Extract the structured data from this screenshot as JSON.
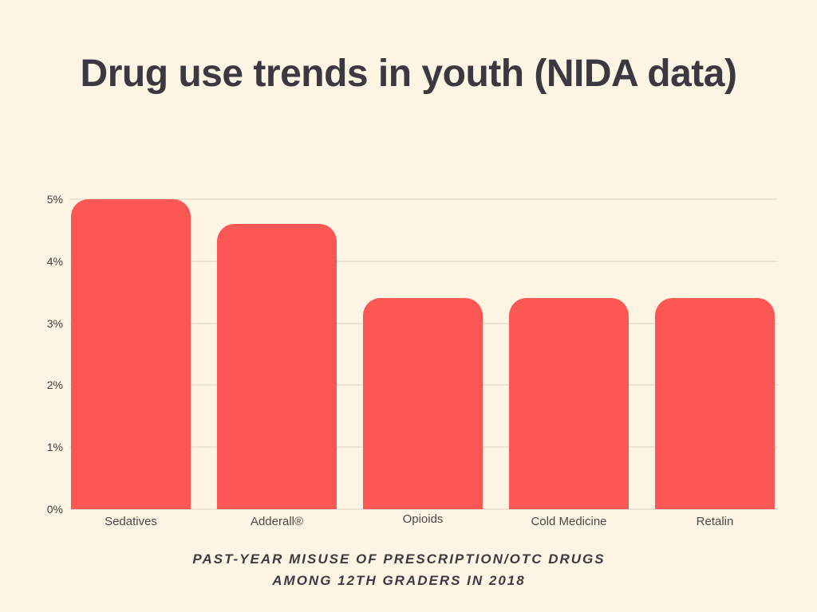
{
  "page": {
    "background_color": "#FDF4E4",
    "title": "Drug use trends in youth (NIDA data)",
    "caption_line1": "PAST-YEAR MISUSE OF PRESCRIPTION/OTC DRUGS",
    "caption_line2": "AMONG 12TH GRADERS IN 2018"
  },
  "colors": {
    "bar": "#FB5754",
    "title_text": "#3A3941",
    "tick_text": "#3E3E3E",
    "category_text": "#4A4A4A",
    "caption_text": "#3C3B42",
    "gridline": "#EBE4D4"
  },
  "chart_data": {
    "type": "bar",
    "title": "Drug use trends in youth (NIDA data)",
    "subtitle": "PAST-YEAR MISUSE OF PRESCRIPTION/OTC DRUGS AMONG 12TH GRADERS IN 2018",
    "categories": [
      "Sedatives",
      "Adderall®",
      "Opioids",
      "Cold Medicine",
      "Retalin"
    ],
    "values": [
      5.0,
      4.6,
      3.4,
      3.4,
      3.4
    ],
    "unit": "%",
    "xlabel": "",
    "ylabel": "",
    "ylim": [
      0,
      5
    ],
    "y_ticks": [
      "0%",
      "1%",
      "2%",
      "3%",
      "4%",
      "5%"
    ],
    "grid": "horizontal",
    "legend": "none",
    "bar_color": "#FB5754"
  }
}
